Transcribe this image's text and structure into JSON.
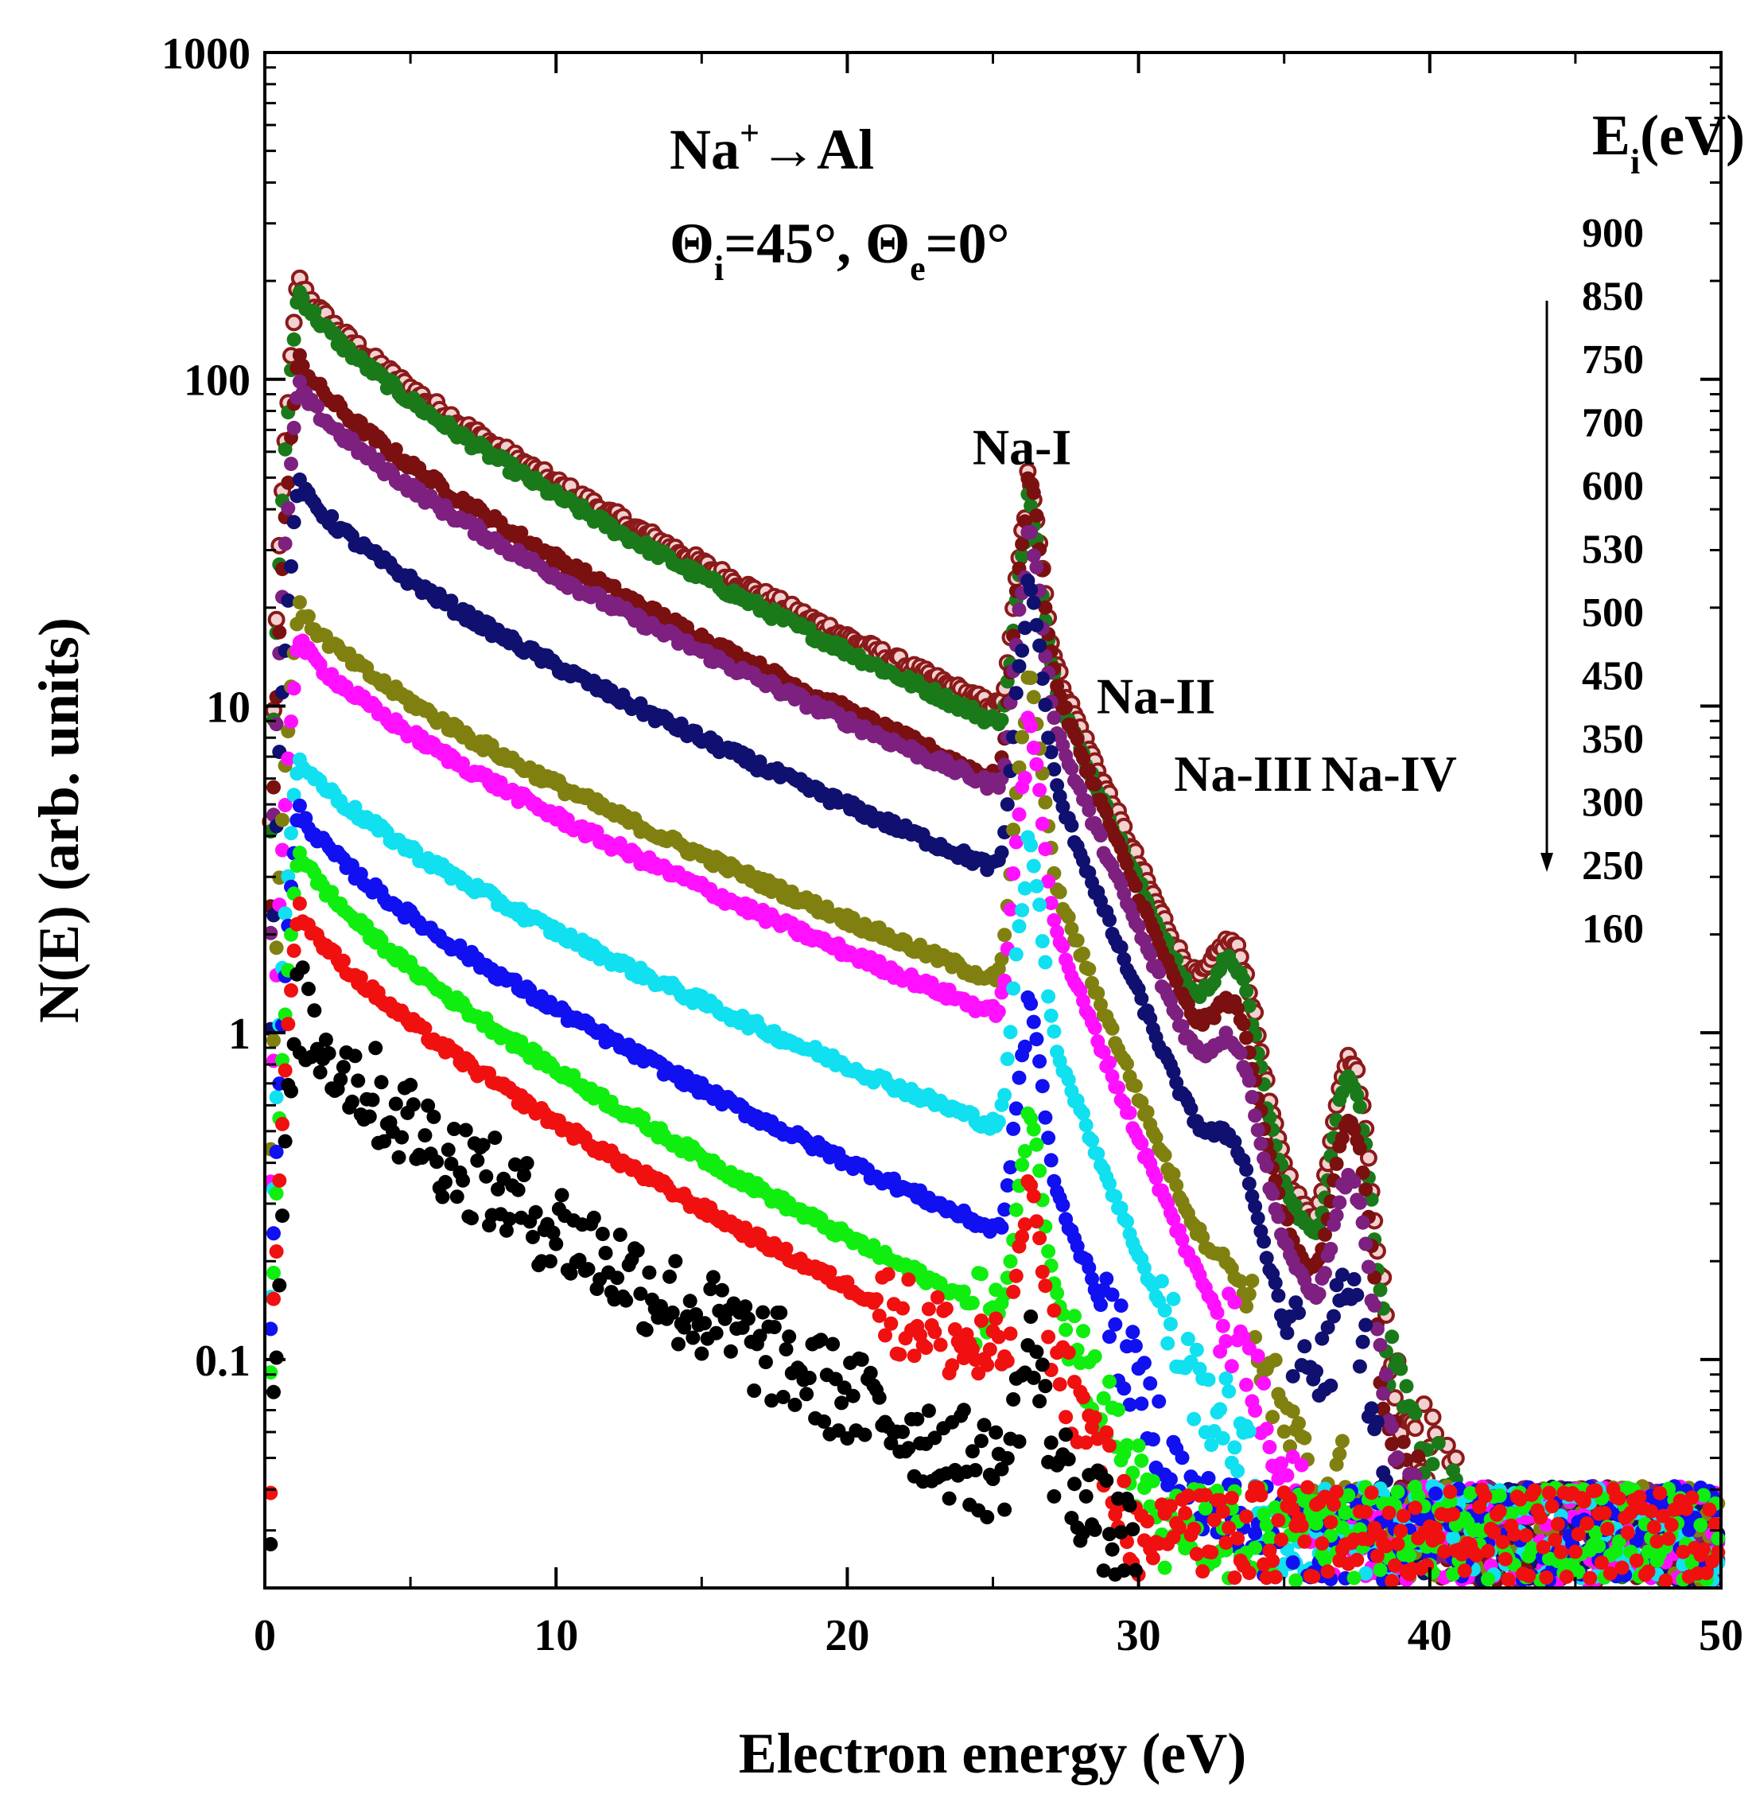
{
  "chart_data": {
    "type": "scatter",
    "title": "",
    "xlabel": "Electron energy (eV)",
    "ylabel": "N(E) (arb. units)",
    "xlim": [
      0,
      50
    ],
    "ylim": [
      0.02,
      1000
    ],
    "yscale": "log",
    "x_ticks": [
      "0",
      "10",
      "20",
      "30",
      "40",
      "50"
    ],
    "y_ticks": [
      {
        "value": 0.1,
        "label": "0.1"
      },
      {
        "value": 1,
        "label": "1"
      },
      {
        "value": 10,
        "label": "10"
      },
      {
        "value": 100,
        "label": "100"
      },
      {
        "value": 1000,
        "label": "1000"
      }
    ],
    "grid": false,
    "annotations": {
      "system": {
        "main": "Na",
        "sup": "+",
        "rest": "→Al"
      },
      "angles": {
        "theta": "Θ",
        "sub_i": "i",
        "eq1": "=45°, ",
        "sub_e": "e",
        "eq2": "=0°"
      },
      "peaks": [
        {
          "label": "Na-I",
          "x": 26.0,
          "y": 55
        },
        {
          "label": "Na-II",
          "x": 30.6,
          "y": 9.5
        },
        {
          "label": "Na-III",
          "x": 33.6,
          "y": 5.5
        },
        {
          "label": "Na-IV",
          "x": 38.6,
          "y": 5.5
        }
      ]
    },
    "legend": {
      "title_main": "E",
      "title_sub": "i",
      "title_unit": "(eV)",
      "placement": "right",
      "entries": [
        "900",
        "850",
        "750",
        "700",
        "600",
        "530",
        "500",
        "450",
        "350",
        "300",
        "250",
        "160"
      ]
    },
    "series": [
      {
        "name": "900",
        "color": "#8b1a1a",
        "marker": "hollow",
        "A": 200,
        "plateau": 10,
        "p1": 30,
        "p2": 3.0,
        "p3": 3.3,
        "offset": 1.25,
        "xmax": 47
      },
      {
        "name": "850",
        "color": "#1a7a1a",
        "marker": "filled",
        "A": 185,
        "plateau": 9,
        "p1": 25,
        "p2": 2.6,
        "p3": 2.9,
        "offset": 1.2,
        "xmax": 50
      },
      {
        "name": "750",
        "color": "#7a1010",
        "marker": "filled",
        "A": 115,
        "plateau": 6,
        "p1": 32,
        "p2": 1.8,
        "p3": 2.1,
        "offset": 1.15,
        "xmax": 50
      },
      {
        "name": "700",
        "color": "#7d2080",
        "marker": "filled",
        "A": 95,
        "plateau": 5.7,
        "p1": 21,
        "p2": 1.3,
        "p3": 1.3,
        "offset": 1.1,
        "xmax": 50
      },
      {
        "name": "600",
        "color": "#101070",
        "marker": "filled",
        "A": 48,
        "plateau": 3.2,
        "p1": 15,
        "p2": 0.5,
        "p3": 0.5,
        "offset": 1.05,
        "xmax": 50
      },
      {
        "name": "530",
        "color": "#808010",
        "marker": "filled",
        "A": 20,
        "plateau": 1.45,
        "p1": 7.8,
        "p2": 0.14,
        "p3": 0.09,
        "offset": 1.0,
        "xmax": 50
      },
      {
        "name": "500",
        "color": "#ff10ff",
        "marker": "filled",
        "A": 16,
        "plateau": 1.15,
        "p1": 5.5,
        "p2": 0.05,
        "p3": 0.035,
        "offset": 1.0,
        "xmax": 50
      },
      {
        "name": "450",
        "color": "#10e0f0",
        "marker": "filled",
        "A": 7,
        "plateau": 0.52,
        "p1": 2.4,
        "p2": 0.04,
        "p3": 0.03,
        "offset": 1.0,
        "xmax": 50
      },
      {
        "name": "350",
        "color": "#1010f0",
        "marker": "filled",
        "A": 4.8,
        "plateau": 0.25,
        "p1": 0.75,
        "p2": 0.035,
        "p3": 0.03,
        "offset": 1.0,
        "xmax": 50
      },
      {
        "name": "300",
        "color": "#10ee10",
        "marker": "filled",
        "A": 3.6,
        "plateau": 0.14,
        "p1": 0.33,
        "p2": 0.03,
        "p3": 0.028,
        "offset": 0.9,
        "xmax": 50
      },
      {
        "name": "250",
        "color": "#f01010",
        "marker": "filled",
        "A": 2.4,
        "plateau": 0.1,
        "p1": 0.19,
        "p2": 0.025,
        "p3": 0.022,
        "offset": 0.8,
        "xmax": 50
      },
      {
        "name": "160",
        "color": "#000000",
        "marker": "filled",
        "A": 1.2,
        "plateau": 0.045,
        "p1": 0.05,
        "p2": 0.04,
        "p3": 0.035,
        "offset": 0.6,
        "xmax": 30
      }
    ]
  }
}
